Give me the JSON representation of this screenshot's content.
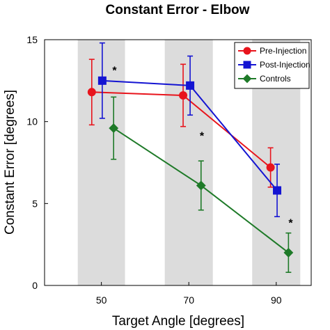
{
  "chart_data": {
    "type": "line",
    "title": "Constant Error - Elbow",
    "xlabel": "Target Angle [degrees]",
    "ylabel": "Constant Error [degrees]",
    "xlim": [
      37,
      98
    ],
    "ylim": [
      0,
      15
    ],
    "x_ticks": [
      50,
      70,
      90
    ],
    "x_tick_labels": [
      "50",
      "70",
      "90"
    ],
    "y_ticks": [
      0,
      5,
      10,
      15
    ],
    "y_tick_labels": [
      "0",
      "5",
      "10",
      "15"
    ],
    "bands": [
      {
        "from": 44.6,
        "to": 55.4
      },
      {
        "from": 64.5,
        "to": 75.5
      },
      {
        "from": 84.5,
        "to": 95.5
      }
    ],
    "band_color": "#dcdcdc",
    "legend_position": "top-right",
    "series": [
      {
        "name": "Pre-Injection",
        "color": "#e8141c",
        "marker": "circle",
        "x": [
          47.8,
          68.7,
          88.7
        ],
        "y": [
          11.8,
          11.6,
          7.2
        ],
        "err": [
          2.0,
          1.9,
          1.2
        ]
      },
      {
        "name": "Post-Injection",
        "color": "#1414d2",
        "marker": "square",
        "x": [
          50.2,
          70.3,
          90.2
        ],
        "y": [
          12.5,
          12.2,
          5.8
        ],
        "err": [
          2.3,
          1.8,
          1.6
        ]
      },
      {
        "name": "Controls",
        "color": "#1e7a28",
        "marker": "diamond",
        "x": [
          52.8,
          72.8,
          92.8
        ],
        "y": [
          9.6,
          6.1,
          2.0
        ],
        "err": [
          1.9,
          1.5,
          1.2
        ]
      }
    ],
    "annotations": [
      {
        "text": "*",
        "x": 53.0,
        "y": 12.9
      },
      {
        "text": "*",
        "x": 73.0,
        "y": 8.9
      },
      {
        "text": "*",
        "x": 93.3,
        "y": 3.6
      }
    ]
  }
}
